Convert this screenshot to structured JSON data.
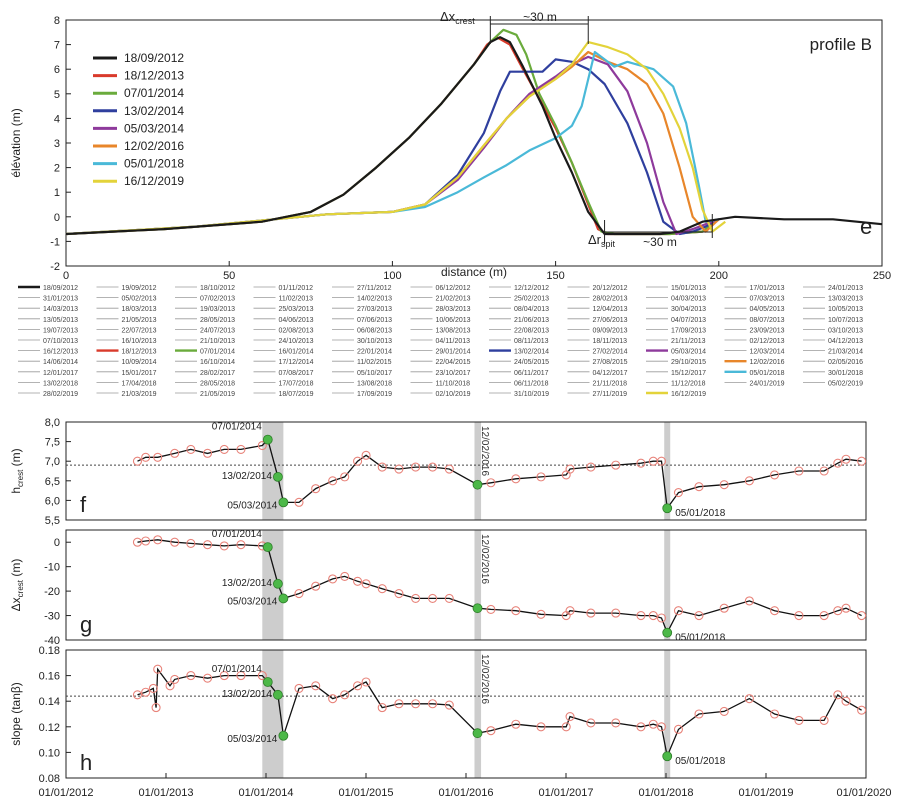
{
  "colors": {
    "black": "#1a1a1a",
    "red": "#d93a2b",
    "green": "#6aab3c",
    "blue": "#2f3f9e",
    "purple": "#8e3a9c",
    "orange": "#e8862a",
    "cyan": "#4ab9d8",
    "yellow": "#e3d33a",
    "gray": "#9a9a9a",
    "marker_red": "#e8837a",
    "marker_green": "#4cb848",
    "shade": "#bcbcbc"
  },
  "chart_data": [
    {
      "id": "e",
      "type": "line",
      "panel_label": "e",
      "title": "profile B",
      "xlabel": "distance (m)",
      "ylabel": "élévation (m)",
      "xlim": [
        0,
        250
      ],
      "ylim": [
        -2,
        8
      ],
      "xticks": [
        0,
        50,
        100,
        150,
        200,
        250
      ],
      "yticks": [
        -2,
        -1,
        0,
        1,
        2,
        3,
        4,
        5,
        6,
        7,
        8
      ],
      "legend_position": "top-left",
      "annotations": {
        "crest_label": "Δx",
        "crest_sub": "crest",
        "crest_value": "~30 m",
        "crest_range": [
          130,
          160
        ],
        "spit_label": "Δr",
        "spit_sub": "spit",
        "spit_value": "~30 m",
        "spit_range": [
          165,
          198
        ]
      },
      "series": [
        {
          "name": "18/09/2012",
          "color": "black",
          "x": [
            0,
            30,
            60,
            75,
            85,
            95,
            105,
            115,
            125,
            130,
            133,
            136,
            140,
            146,
            150,
            155,
            160,
            165,
            170,
            182,
            188,
            195,
            205,
            220,
            235,
            250
          ],
          "y": [
            -0.7,
            -0.5,
            -0.2,
            0.2,
            0.9,
            2.0,
            3.2,
            4.6,
            6.2,
            7.1,
            7.3,
            7.1,
            6.1,
            4.5,
            3.2,
            1.8,
            0.2,
            -0.7,
            -0.7,
            -0.7,
            -0.6,
            -0.2,
            0.0,
            -0.1,
            -0.1,
            -0.3
          ]
        },
        {
          "name": "18/12/2013",
          "color": "red",
          "x": [
            0,
            30,
            60,
            75,
            85,
            95,
            105,
            115,
            125,
            129,
            132,
            136,
            140,
            145,
            150,
            155,
            160,
            163,
            166,
            175,
            185,
            195,
            200
          ],
          "y": [
            -0.7,
            -0.5,
            -0.2,
            0.2,
            0.9,
            2.0,
            3.2,
            4.6,
            6.2,
            7.0,
            7.3,
            7.0,
            6.0,
            4.8,
            3.6,
            2.2,
            0.5,
            -0.5,
            -0.7,
            -0.7,
            -0.7,
            -0.6,
            -0.1
          ]
        },
        {
          "name": "07/01/2014",
          "color": "green",
          "x": [
            0,
            30,
            60,
            75,
            85,
            95,
            105,
            115,
            125,
            130,
            134,
            138,
            141,
            145,
            150,
            155,
            160,
            164,
            168,
            175,
            185,
            195,
            200
          ],
          "y": [
            -0.7,
            -0.5,
            -0.2,
            0.2,
            0.9,
            2.0,
            3.2,
            4.6,
            6.2,
            7.1,
            7.6,
            7.4,
            6.6,
            5.0,
            3.7,
            2.2,
            0.6,
            -0.6,
            -0.7,
            -0.7,
            -0.7,
            -0.6,
            -0.1
          ]
        },
        {
          "name": "13/02/2014",
          "color": "blue",
          "x": [
            0,
            40,
            80,
            100,
            110,
            120,
            128,
            133,
            136,
            140,
            146,
            150,
            155,
            160,
            165,
            172,
            178,
            183,
            188,
            192,
            196,
            200
          ],
          "y": [
            -0.7,
            -0.4,
            0.1,
            0.2,
            0.5,
            1.7,
            3.4,
            5.1,
            5.9,
            5.9,
            5.9,
            6.4,
            6.3,
            6.0,
            5.4,
            3.8,
            1.8,
            -0.2,
            -0.7,
            -0.6,
            -0.4,
            -0.1
          ]
        },
        {
          "name": "05/03/2014",
          "color": "purple",
          "x": [
            0,
            40,
            80,
            100,
            110,
            120,
            128,
            135,
            142,
            150,
            155,
            160,
            166,
            172,
            178,
            183,
            187,
            192,
            196,
            200
          ],
          "y": [
            -0.7,
            -0.4,
            0.1,
            0.2,
            0.5,
            1.5,
            2.8,
            4.0,
            5.0,
            5.7,
            6.2,
            6.5,
            6.2,
            5.1,
            3.0,
            0.6,
            -0.7,
            -0.5,
            -0.3,
            -0.1
          ]
        },
        {
          "name": "12/02/2016",
          "color": "orange",
          "x": [
            0,
            40,
            80,
            100,
            110,
            120,
            128,
            135,
            142,
            150,
            155,
            160,
            166,
            172,
            178,
            183,
            188,
            192,
            196,
            200
          ],
          "y": [
            -0.7,
            -0.4,
            0.1,
            0.2,
            0.5,
            1.6,
            2.9,
            4.0,
            4.9,
            5.6,
            6.1,
            6.7,
            6.3,
            6.0,
            5.4,
            4.2,
            2.0,
            0.0,
            -0.6,
            -0.1
          ]
        },
        {
          "name": "05/01/2018",
          "color": "cyan",
          "x": [
            0,
            40,
            80,
            100,
            110,
            120,
            128,
            135,
            142,
            150,
            155,
            158,
            162,
            168,
            172,
            180,
            186,
            190,
            194,
            196,
            200
          ],
          "y": [
            -0.7,
            -0.4,
            0.1,
            0.2,
            0.4,
            1.0,
            1.6,
            2.1,
            2.7,
            3.2,
            3.7,
            4.5,
            6.7,
            6.1,
            6.3,
            6.0,
            5.3,
            3.8,
            1.2,
            -0.2,
            -0.1
          ]
        },
        {
          "name": "16/12/2019",
          "color": "yellow",
          "x": [
            0,
            40,
            80,
            100,
            110,
            120,
            128,
            135,
            142,
            150,
            155,
            160,
            166,
            172,
            178,
            183,
            188,
            192,
            195,
            198,
            202
          ],
          "y": [
            -0.7,
            -0.4,
            0.1,
            0.2,
            0.5,
            1.6,
            2.9,
            4.0,
            4.9,
            5.6,
            6.2,
            7.1,
            6.9,
            6.6,
            6.0,
            5.0,
            3.6,
            2.0,
            0.3,
            -0.6,
            -0.2
          ]
        }
      ]
    },
    {
      "id": "f",
      "type": "line",
      "panel_label": "f",
      "ylabel": "h",
      "ylabel_sub": "crest",
      "ylabel_unit": " (m)",
      "ylim": [
        5.5,
        8.0
      ],
      "yticks": [
        5.5,
        6.0,
        6.5,
        7.0,
        7.5,
        8.0
      ],
      "ytick_labels": [
        "5,5",
        "6,0",
        "6,5",
        "7,0",
        "7,5",
        "8,0"
      ],
      "reference_line": 6.9,
      "x": [
        "2012-09-18",
        "2012-10-18",
        "2012-12-01",
        "2013-02-01",
        "2013-04-01",
        "2013-06-01",
        "2013-08-01",
        "2013-10-01",
        "2013-12-18",
        "2014-01-07",
        "2014-02-13",
        "2014-03-05",
        "2014-05-01",
        "2014-07-01",
        "2014-09-01",
        "2014-10-15",
        "2014-12-01",
        "2015-01-01",
        "2015-03-01",
        "2015-05-01",
        "2015-07-01",
        "2015-09-01",
        "2015-11-01",
        "2016-02-12",
        "2016-04-01",
        "2016-07-01",
        "2016-10-01",
        "2017-01-01",
        "2017-01-15",
        "2017-04-01",
        "2017-07-01",
        "2017-10-01",
        "2017-11-15",
        "2017-12-15",
        "2018-01-05",
        "2018-02-15",
        "2018-05-01",
        "2018-08-01",
        "2018-11-01",
        "2019-02-01",
        "2019-05-01",
        "2019-08-01",
        "2019-09-20",
        "2019-10-20",
        "2019-12-16"
      ],
      "y": [
        7.0,
        7.1,
        7.1,
        7.2,
        7.3,
        7.2,
        7.3,
        7.3,
        7.4,
        7.55,
        6.6,
        5.95,
        5.95,
        6.3,
        6.5,
        6.6,
        7.0,
        7.15,
        6.85,
        6.8,
        6.85,
        6.85,
        6.8,
        6.4,
        6.45,
        6.55,
        6.6,
        6.65,
        6.8,
        6.85,
        6.9,
        6.95,
        7.0,
        7.0,
        5.8,
        6.2,
        6.35,
        6.4,
        6.5,
        6.65,
        6.75,
        6.75,
        6.95,
        7.05,
        7.0
      ],
      "highlights": [
        {
          "date": "2014-01-07",
          "label": "07/01/2014",
          "value": 7.55
        },
        {
          "date": "2014-02-13",
          "label": "13/02/2014",
          "value": 6.6
        },
        {
          "date": "2014-03-05",
          "label": "05/03/2014",
          "value": 5.95
        },
        {
          "date": "2016-02-12",
          "label": "12/02/2016",
          "value": 6.4
        },
        {
          "date": "2018-01-05",
          "label": "05/01/2018",
          "value": 5.8
        }
      ]
    },
    {
      "id": "g",
      "type": "line",
      "panel_label": "g",
      "ylabel": "Δx",
      "ylabel_sub": "crest",
      "ylabel_unit": " (m)",
      "ylim": [
        -40,
        5
      ],
      "yticks": [
        -40,
        -30,
        -20,
        -10,
        0
      ],
      "ytick_labels": [
        "-40",
        "-30",
        "-20",
        "-10",
        "0"
      ],
      "x": [
        "2012-09-18",
        "2012-10-18",
        "2012-12-01",
        "2013-02-01",
        "2013-04-01",
        "2013-06-01",
        "2013-08-01",
        "2013-10-01",
        "2013-12-18",
        "2014-01-07",
        "2014-02-13",
        "2014-03-05",
        "2014-05-01",
        "2014-07-01",
        "2014-09-01",
        "2014-10-15",
        "2014-12-01",
        "2015-01-01",
        "2015-03-01",
        "2015-05-01",
        "2015-07-01",
        "2015-09-01",
        "2015-11-01",
        "2016-02-12",
        "2016-04-01",
        "2016-07-01",
        "2016-10-01",
        "2017-01-01",
        "2017-01-15",
        "2017-04-01",
        "2017-07-01",
        "2017-10-01",
        "2017-11-15",
        "2017-12-15",
        "2018-01-05",
        "2018-02-15",
        "2018-05-01",
        "2018-08-01",
        "2018-11-01",
        "2019-02-01",
        "2019-05-01",
        "2019-08-01",
        "2019-09-20",
        "2019-10-20",
        "2019-12-16"
      ],
      "y": [
        0.0,
        0.5,
        1.0,
        0.0,
        -0.5,
        -1.0,
        -1.5,
        -1.0,
        -1.5,
        -2.0,
        -17.0,
        -23.0,
        -21.0,
        -18.0,
        -15.0,
        -14.0,
        -16.0,
        -17.0,
        -19.0,
        -21.0,
        -23.0,
        -23.0,
        -23.0,
        -27.0,
        -27.5,
        -28.0,
        -29.5,
        -30.0,
        -28.0,
        -29.0,
        -29.0,
        -30.0,
        -30.0,
        -31.0,
        -37.0,
        -28.0,
        -30.0,
        -27.0,
        -24.0,
        -28.0,
        -30.0,
        -30.0,
        -28.0,
        -27.0,
        -30.0
      ],
      "highlights": [
        {
          "date": "2014-01-07",
          "label": "07/01/2014",
          "value": -2.0
        },
        {
          "date": "2014-02-13",
          "label": "13/02/2014",
          "value": -17.0
        },
        {
          "date": "2014-03-05",
          "label": "05/03/2014",
          "value": -23.0
        },
        {
          "date": "2016-02-12",
          "label": "12/02/2016",
          "value": -27.0
        },
        {
          "date": "2018-01-05",
          "label": "05/01/2018",
          "value": -37.0
        }
      ]
    },
    {
      "id": "h",
      "type": "line",
      "panel_label": "h",
      "ylabel": "slope (tanβ)",
      "ylim": [
        0.08,
        0.18
      ],
      "yticks": [
        0.08,
        0.1,
        0.12,
        0.14,
        0.16,
        0.18
      ],
      "ytick_labels": [
        "0.08",
        "0.10",
        "0.12",
        "0.14",
        "0.16",
        "0.18"
      ],
      "reference_line": 0.144,
      "xlabel_ticks": [
        "01/01/2012",
        "01/01/2013",
        "01/01/2014",
        "01/01/2015",
        "01/01/2016",
        "01/01/2017",
        "01/01/2018",
        "01/01/2019",
        "01/01/2020"
      ],
      "x": [
        "2012-09-18",
        "2012-10-18",
        "2012-11-15",
        "2012-11-25",
        "2012-12-01",
        "2013-01-15",
        "2013-02-01",
        "2013-04-01",
        "2013-06-01",
        "2013-08-01",
        "2013-10-01",
        "2013-12-18",
        "2014-01-07",
        "2014-02-13",
        "2014-03-05",
        "2014-05-01",
        "2014-07-01",
        "2014-09-01",
        "2014-10-15",
        "2014-12-01",
        "2015-01-01",
        "2015-03-01",
        "2015-05-01",
        "2015-07-01",
        "2015-09-01",
        "2015-11-01",
        "2016-02-12",
        "2016-04-01",
        "2016-07-01",
        "2016-10-01",
        "2017-01-01",
        "2017-01-15",
        "2017-04-01",
        "2017-07-01",
        "2017-10-01",
        "2017-11-15",
        "2017-12-15",
        "2018-01-05",
        "2018-02-15",
        "2018-05-01",
        "2018-08-01",
        "2018-11-01",
        "2019-02-01",
        "2019-05-01",
        "2019-08-01",
        "2019-09-20",
        "2019-10-20",
        "2019-12-16"
      ],
      "y": [
        0.145,
        0.147,
        0.15,
        0.135,
        0.165,
        0.152,
        0.157,
        0.16,
        0.158,
        0.16,
        0.16,
        0.16,
        0.155,
        0.145,
        0.113,
        0.15,
        0.152,
        0.142,
        0.145,
        0.152,
        0.155,
        0.135,
        0.138,
        0.138,
        0.138,
        0.137,
        0.115,
        0.117,
        0.122,
        0.12,
        0.12,
        0.128,
        0.123,
        0.123,
        0.12,
        0.122,
        0.12,
        0.097,
        0.118,
        0.13,
        0.132,
        0.142,
        0.13,
        0.125,
        0.125,
        0.145,
        0.14,
        0.133
      ],
      "highlights": [
        {
          "date": "2014-01-07",
          "label": "07/01/2014",
          "value": 0.155
        },
        {
          "date": "2014-02-13",
          "label": "13/02/2014",
          "value": 0.145
        },
        {
          "date": "2014-03-05",
          "label": "05/03/2014",
          "value": 0.113
        },
        {
          "date": "2016-02-12",
          "label": "12/02/2016",
          "value": 0.115
        },
        {
          "date": "2018-01-05",
          "label": "05/01/2018",
          "value": 0.097
        }
      ]
    }
  ],
  "shaded_periods": [
    {
      "label": "",
      "start": "2013-12-18",
      "end": "2014-03-05"
    },
    {
      "label": "12/02/2016",
      "start": "2016-02-01",
      "end": "2016-02-25"
    },
    {
      "label": "",
      "start": "2017-12-25",
      "end": "2018-01-15"
    }
  ],
  "date_axis": {
    "start": "2012-01-01",
    "end": "2020-01-01"
  },
  "survey_key": {
    "highlight_colors": {
      "18/09/2012": "black",
      "18/12/2013": "red",
      "07/01/2014": "green",
      "13/02/2014": "blue",
      "05/03/2014": "purple",
      "12/02/2016": "orange",
      "05/01/2018": "cyan",
      "16/12/2019": "yellow"
    },
    "dates": [
      "18/09/2012",
      "19/09/2012",
      "18/10/2012",
      "01/11/2012",
      "27/11/2012",
      "06/12/2012",
      "12/12/2012",
      "20/12/2012",
      "15/01/2013",
      "17/01/2013",
      "24/01/2013",
      "31/01/2013",
      "05/02/2013",
      "07/02/2013",
      "11/02/2013",
      "14/02/2013",
      "21/02/2013",
      "25/02/2013",
      "28/02/2013",
      "04/03/2013",
      "07/03/2013",
      "13/03/2013",
      "14/03/2013",
      "18/03/2013",
      "19/03/2013",
      "25/03/2013",
      "27/03/2013",
      "28/03/2013",
      "08/04/2013",
      "12/04/2013",
      "30/04/2013",
      "04/05/2013",
      "10/05/2013",
      "13/05/2013",
      "21/05/2013",
      "28/05/2013",
      "04/06/2013",
      "07/06/2013",
      "10/06/2013",
      "21/06/2013",
      "27/06/2013",
      "04/07/2013",
      "08/07/2013",
      "10/07/2013",
      "19/07/2013",
      "22/07/2013",
      "24/07/2013",
      "02/08/2013",
      "06/08/2013",
      "13/08/2013",
      "22/08/2013",
      "09/09/2013",
      "17/09/2013",
      "23/09/2013",
      "03/10/2013",
      "07/10/2013",
      "16/10/2013",
      "21/10/2013",
      "24/10/2013",
      "30/10/2013",
      "04/11/2013",
      "08/11/2013",
      "18/11/2013",
      "21/11/2013",
      "02/12/2013",
      "04/12/2013",
      "16/12/2013",
      "18/12/2013",
      "07/01/2014",
      "16/01/2014",
      "22/01/2014",
      "29/01/2014",
      "13/02/2014",
      "27/02/2014",
      "05/03/2014",
      "12/03/2014",
      "21/03/2014",
      "14/06/2014",
      "10/09/2014",
      "16/10/2014",
      "17/12/2014",
      "11/02/2015",
      "22/04/2015",
      "24/05/2015",
      "27/08/2015",
      "29/10/2015",
      "12/02/2016",
      "02/05/2016",
      "12/01/2017",
      "15/01/2017",
      "28/02/2017",
      "07/08/2017",
      "05/10/2017",
      "23/10/2017",
      "06/11/2017",
      "04/12/2017",
      "15/12/2017",
      "05/01/2018",
      "30/01/2018",
      "13/02/2018",
      "17/04/2018",
      "28/05/2018",
      "17/07/2018",
      "13/08/2018",
      "11/10/2018",
      "06/11/2018",
      "21/11/2018",
      "11/12/2018",
      "24/01/2019",
      "05/02/2019",
      "28/02/2019",
      "21/03/2019",
      "21/05/2019",
      "18/07/2019",
      "17/09/2019",
      "02/10/2019",
      "31/10/2019",
      "27/11/2019",
      "16/12/2019"
    ]
  }
}
